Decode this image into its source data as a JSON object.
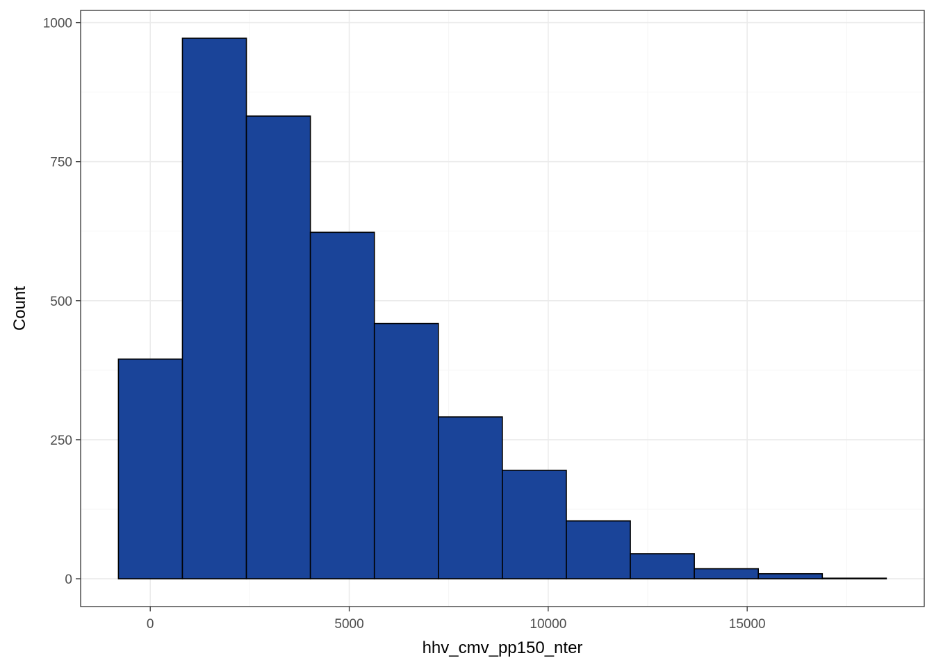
{
  "chart_data": {
    "type": "bar",
    "subtype": "histogram",
    "xlabel": "hhv_cmv_pp150_nter",
    "ylabel": "Count",
    "bin_width": 1608,
    "bins": [
      {
        "x0": -800,
        "x1": 808,
        "count": 395
      },
      {
        "x0": 808,
        "x1": 2416,
        "count": 972
      },
      {
        "x0": 2416,
        "x1": 4024,
        "count": 832
      },
      {
        "x0": 4024,
        "x1": 5632,
        "count": 623
      },
      {
        "x0": 5632,
        "x1": 7240,
        "count": 459
      },
      {
        "x0": 7240,
        "x1": 8848,
        "count": 291
      },
      {
        "x0": 8848,
        "x1": 10456,
        "count": 195
      },
      {
        "x0": 10456,
        "x1": 12064,
        "count": 104
      },
      {
        "x0": 12064,
        "x1": 13672,
        "count": 45
      },
      {
        "x0": 13672,
        "x1": 15280,
        "count": 18
      },
      {
        "x0": 15280,
        "x1": 16888,
        "count": 9
      },
      {
        "x0": 16888,
        "x1": 18496,
        "count": 1
      }
    ],
    "xlim": [
      -1750,
      19450
    ],
    "ylim": [
      -50,
      1022
    ],
    "x_ticks": [
      0,
      5000,
      10000,
      15000
    ],
    "x_tick_labels": [
      "0",
      "5000",
      "10000",
      "15000"
    ],
    "y_ticks": [
      0,
      250,
      500,
      750,
      1000
    ],
    "y_tick_labels": [
      "0",
      "250",
      "500",
      "750",
      "1000"
    ],
    "grid": true,
    "legend": "none",
    "colors": {
      "bar_fill": "#1a4499",
      "bar_outline": "#000000",
      "panel_background": "#ffffff"
    }
  }
}
